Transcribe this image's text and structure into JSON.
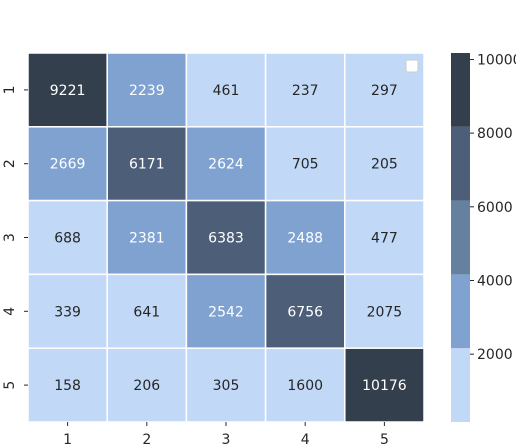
{
  "chart_data": {
    "type": "heatmap",
    "title": "",
    "xlabel": "",
    "ylabel": "",
    "x_categories": [
      "1",
      "2",
      "3",
      "4",
      "5"
    ],
    "y_categories": [
      "1",
      "2",
      "3",
      "4",
      "5"
    ],
    "values": [
      [
        9221,
        2239,
        461,
        237,
        297
      ],
      [
        2669,
        6171,
        2624,
        705,
        205
      ],
      [
        688,
        2381,
        6383,
        2488,
        477
      ],
      [
        339,
        641,
        2542,
        6756,
        2075
      ],
      [
        158,
        206,
        305,
        1600,
        10176
      ]
    ],
    "colorbar": {
      "vmin": 158,
      "vmax": 10176,
      "ticks": [
        2000,
        4000,
        6000,
        8000,
        10000
      ],
      "bins": [
        {
          "from": 158,
          "to": 2162,
          "color": "#c1d9f7"
        },
        {
          "from": 2162,
          "to": 4165,
          "color": "#7fa2d1"
        },
        {
          "from": 4165,
          "to": 6169,
          "color": "#66819f"
        },
        {
          "from": 6169,
          "to": 8172,
          "color": "#4d5f78"
        },
        {
          "from": 8172,
          "to": 10176,
          "color": "#343f4e"
        }
      ]
    },
    "colors": {
      "cell_border": "#ffffff",
      "text_light": "#ffffff",
      "text_dark": "#262626"
    },
    "legend": {
      "placement": "top-right",
      "entries": []
    },
    "grid": false
  }
}
